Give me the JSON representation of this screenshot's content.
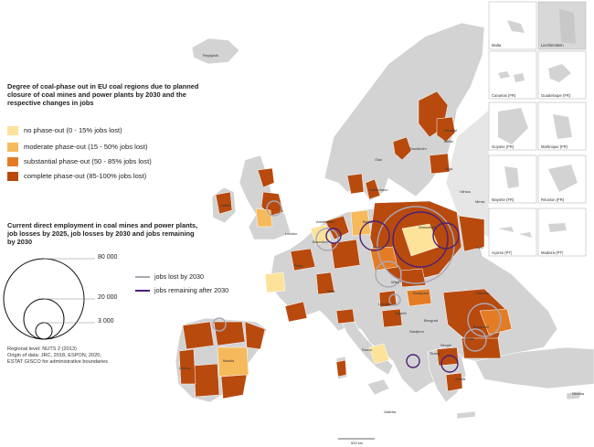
{
  "legend": {
    "title_phaseout": "Degree of coal-phase out in EU coal regions due to planned closure of coal mines and power plants by 2030 and the respective changes in jobs",
    "title_phaseout_lines": [
      "Degree of coal-phase out in EU coal regions due to planned",
      "closure of coal mines and power plants by 2030 and the",
      "respective changes in jobs"
    ],
    "categories": [
      {
        "label": "no phase-out (0 - 15% jobs lost)",
        "color": "#fde29a"
      },
      {
        "label": "moderate phase-out (15 - 50% jobs lost)",
        "color": "#f6ba5c"
      },
      {
        "label": "substantial phase-out (50 - 85% jobs lost)",
        "color": "#e47c26"
      },
      {
        "label": "complete phase-out (85-100% jobs lost)",
        "color": "#b84a0e"
      }
    ],
    "title_employment_lines": [
      "Current direct employment in coal mines and power plants,",
      "job losses by 2025, job losses by 2030 and jobs remaining",
      "by 2030"
    ],
    "size_values": [
      "80 000",
      "20 000",
      "3 000"
    ],
    "lines": [
      {
        "label": "jobs lost by 2030",
        "color": "#a9a9b6"
      },
      {
        "label": "jobs remaining after 2030",
        "color": "#4b2076"
      }
    ]
  },
  "source_lines": [
    "Regional level: NUTS 2 (2013)",
    "Origin of data: JRC, 2018, ESPON, 2020,",
    "ESTAT GISCO for administrative boundaries"
  ],
  "insets": [
    "Malta",
    "Liechtenstein",
    "Canarias (FR)",
    "Guadeloupe (FR)",
    "Guyane (FR)",
    "Martinique (FR)",
    "Mayotte (FR)",
    "Réunion (FR)",
    "Açores (PT)",
    "Madeira (PT)"
  ],
  "cities": [
    "Reykjavik",
    "Helsinki",
    "Tallinn",
    "Stockholm",
    "Riga",
    "Oslo",
    "Vilnius",
    "Minsk",
    "København",
    "Dublin",
    "London",
    "Amsterdam",
    "Berlin",
    "Warszawa",
    "Kyiv",
    "Bruxelles",
    "Praha",
    "Paris",
    "Bern",
    "Wien",
    "Budapest",
    "Chisinau",
    "Ljubljana",
    "Zagreb",
    "Beograd",
    "Bucuresti",
    "Sarajevo",
    "Lisboa",
    "Madrid",
    "Roma",
    "Tirana",
    "Skopje",
    "Sofia",
    "Athina",
    "Valletta",
    "Nicosia"
  ],
  "scale_bar": "500 km",
  "colors": {
    "land": "#d3d3d3",
    "nonEU": "#e6e6e6",
    "sea": "#ffffff",
    "border": "#ffffff"
  }
}
